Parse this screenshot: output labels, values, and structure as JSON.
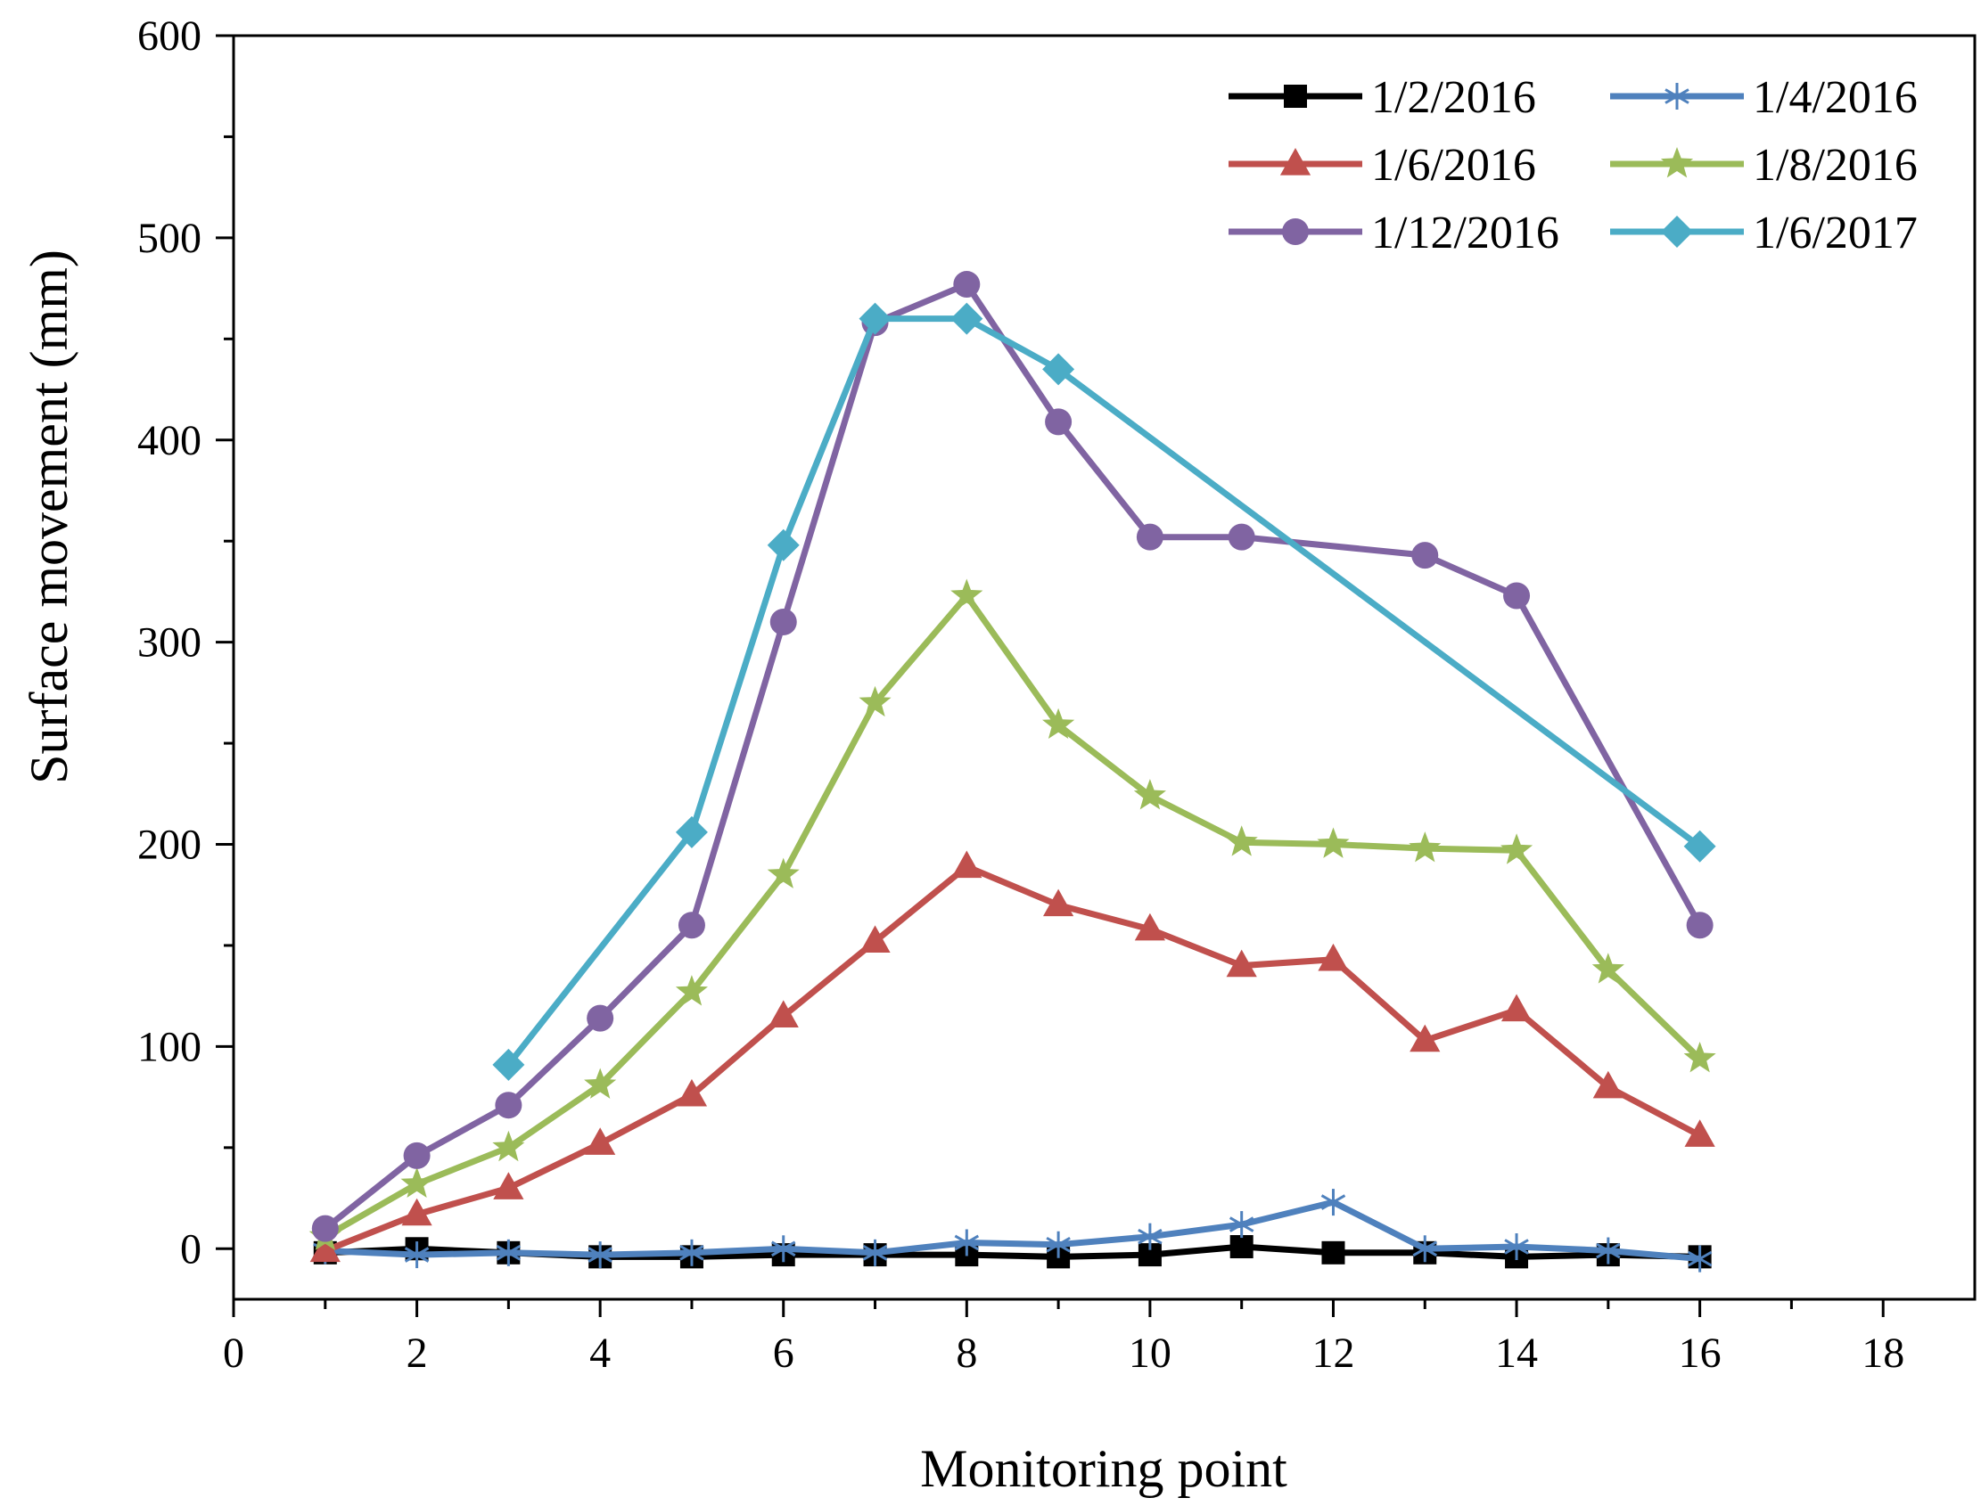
{
  "chart_data": {
    "type": "line",
    "xlabel": "Monitoring point",
    "ylabel": "Surface movement (mm)",
    "xlim": [
      0,
      19
    ],
    "ylim": [
      -25,
      600
    ],
    "x_ticks": [
      0,
      2,
      4,
      6,
      8,
      10,
      12,
      14,
      16,
      18
    ],
    "y_ticks": [
      0,
      100,
      200,
      300,
      400,
      500,
      600
    ],
    "grid": false,
    "legend_position": "top-right",
    "series": [
      {
        "name": "1/2/2016",
        "color": "#000000",
        "marker": "square",
        "x": [
          1,
          2,
          3,
          4,
          5,
          6,
          7,
          8,
          9,
          10,
          11,
          12,
          13,
          14,
          15,
          16
        ],
        "y": [
          -2,
          0,
          -2,
          -4,
          -4,
          -3,
          -3,
          -3,
          -4,
          -3,
          1,
          -2,
          -2,
          -4,
          -3,
          -4
        ]
      },
      {
        "name": "1/4/2016",
        "color": "#4F81BD",
        "marker": "asterisk",
        "x": [
          1,
          2,
          3,
          4,
          5,
          6,
          7,
          8,
          9,
          10,
          11,
          12,
          13,
          14,
          15,
          16
        ],
        "y": [
          -1,
          -3,
          -2,
          -3,
          -2,
          0,
          -2,
          3,
          2,
          6,
          12,
          23,
          0,
          1,
          -1,
          -5
        ]
      },
      {
        "name": "1/6/2016",
        "color": "#C0504D",
        "marker": "triangle",
        "x": [
          1,
          2,
          3,
          4,
          5,
          6,
          7,
          8,
          9,
          10,
          11,
          12,
          13,
          14,
          15,
          16
        ],
        "y": [
          -1,
          17,
          30,
          52,
          76,
          115,
          152,
          189,
          170,
          158,
          140,
          143,
          103,
          118,
          80,
          56
        ]
      },
      {
        "name": "1/8/2016",
        "color": "#9BBB59",
        "marker": "star",
        "x": [
          1,
          2,
          3,
          4,
          5,
          6,
          7,
          8,
          9,
          10,
          11,
          12,
          13,
          14,
          15,
          16
        ],
        "y": [
          6,
          32,
          50,
          81,
          127,
          185,
          270,
          323,
          259,
          224,
          201,
          200,
          198,
          197,
          138,
          94
        ]
      },
      {
        "name": "1/12/2016",
        "color": "#8064A2",
        "marker": "circle",
        "x": [
          1,
          2,
          3,
          4,
          5,
          6,
          7,
          8,
          9,
          10,
          11,
          13,
          14,
          16
        ],
        "y": [
          10,
          46,
          71,
          114,
          160,
          310,
          458,
          477,
          409,
          352,
          352,
          343,
          323,
          160
        ]
      },
      {
        "name": "1/6/2017",
        "color": "#4BACC6",
        "marker": "diamond",
        "x": [
          3,
          5,
          6,
          7,
          8,
          9,
          16
        ],
        "y": [
          91,
          206,
          348,
          460,
          460,
          435,
          199
        ]
      }
    ]
  }
}
